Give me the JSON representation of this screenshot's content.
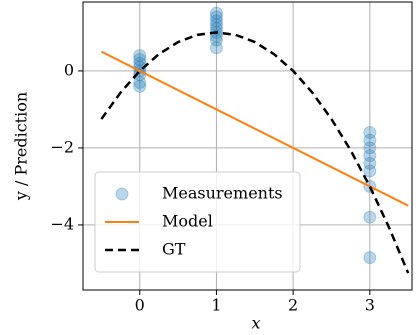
{
  "chart_data": {
    "type": "scatter",
    "xlabel": "x",
    "ylabel": "y / Prediction",
    "xlim": [
      -0.74,
      3.55
    ],
    "ylim": [
      -5.69,
      1.79
    ],
    "xticks": [
      0,
      1,
      2,
      3
    ],
    "yticks": [
      0,
      {
        "value": -2,
        "label": "−2"
      },
      {
        "value": -4,
        "label": "−4"
      }
    ],
    "grid": true,
    "legend": "lower left",
    "series": [
      {
        "name": "Measurements",
        "type": "scatter",
        "color": "#1f77b4",
        "x": [
          0,
          0,
          0,
          0,
          0,
          0,
          0,
          0,
          1,
          1,
          1,
          1,
          1,
          1,
          1,
          1,
          1,
          3,
          3,
          3,
          3,
          3,
          3,
          3,
          3,
          3
        ],
        "values": [
          0.4,
          0.3,
          0.2,
          0.1,
          0,
          -0.1,
          -0.3,
          -0.4,
          1.5,
          1.4,
          1.3,
          1.2,
          1.1,
          1.0,
          0.9,
          0.8,
          0.6,
          -1.6,
          -1.8,
          -2.0,
          -2.2,
          -2.4,
          -2.6,
          -3.0,
          -3.8,
          -4.85
        ]
      },
      {
        "name": "Model",
        "type": "line",
        "color": "#ff7f0e",
        "x": [
          -0.5,
          3.5
        ],
        "values": [
          0.5,
          -3.5
        ]
      },
      {
        "name": "GT",
        "type": "line",
        "color": "#000000",
        "dash": "dashed",
        "x": [
          -0.5,
          -0.25,
          0,
          0.25,
          0.5,
          0.75,
          1,
          1.25,
          1.5,
          1.75,
          2,
          2.25,
          2.5,
          2.75,
          3,
          3.25,
          3.5
        ],
        "values": [
          -1.25,
          -0.5625,
          0,
          0.4375,
          0.75,
          0.9375,
          1,
          0.9375,
          0.75,
          0.4375,
          0,
          -0.5625,
          -1.25,
          -2.0625,
          -3,
          -4.0625,
          -5.25
        ]
      }
    ]
  }
}
